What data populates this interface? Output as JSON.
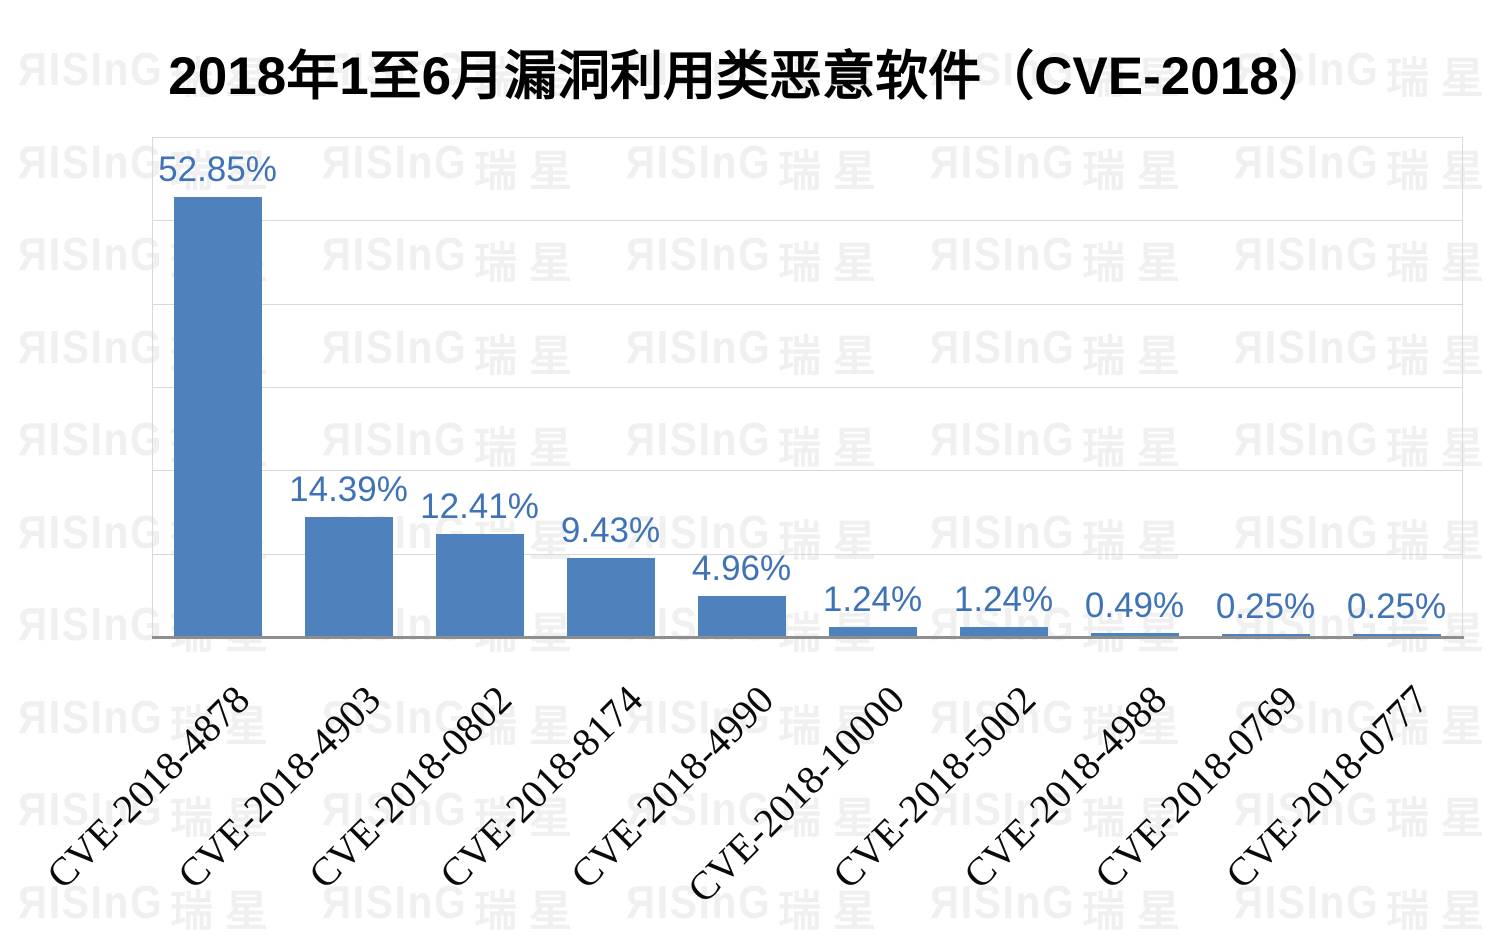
{
  "watermark": {
    "latin": "ЯIЅInG",
    "cjk": "瑞星",
    "color": "#f0f0f0"
  },
  "chart_data": {
    "type": "bar",
    "title": "2018年1至6月漏洞利用类恶意软件（CVE-2018）",
    "categories": [
      "CVE-2018-4878",
      "CVE-2018-4903",
      "CVE-2018-0802",
      "CVE-2018-8174",
      "CVE-2018-4990",
      "CVE-2018-10000",
      "CVE-2018-5002",
      "CVE-2018-4988",
      "CVE-2018-0769",
      "CVE-2018-0777"
    ],
    "values": [
      52.85,
      14.39,
      12.41,
      9.43,
      4.96,
      1.24,
      1.24,
      0.49,
      0.25,
      0.25
    ],
    "value_labels": [
      "52.85%",
      "14.39%",
      "12.41%",
      "9.43%",
      "4.96%",
      "1.24%",
      "1.24%",
      "0.49%",
      "0.25%",
      "0.25%"
    ],
    "xlabel": "",
    "ylabel": "",
    "ylim": [
      0,
      60
    ],
    "gridline_step": 10,
    "grid": true,
    "legend": false,
    "colors": {
      "bar": "#4f81bd",
      "value_label": "#3f72b6",
      "gridline": "#d9d9d9",
      "axis_line": "#8e8e8e"
    }
  }
}
